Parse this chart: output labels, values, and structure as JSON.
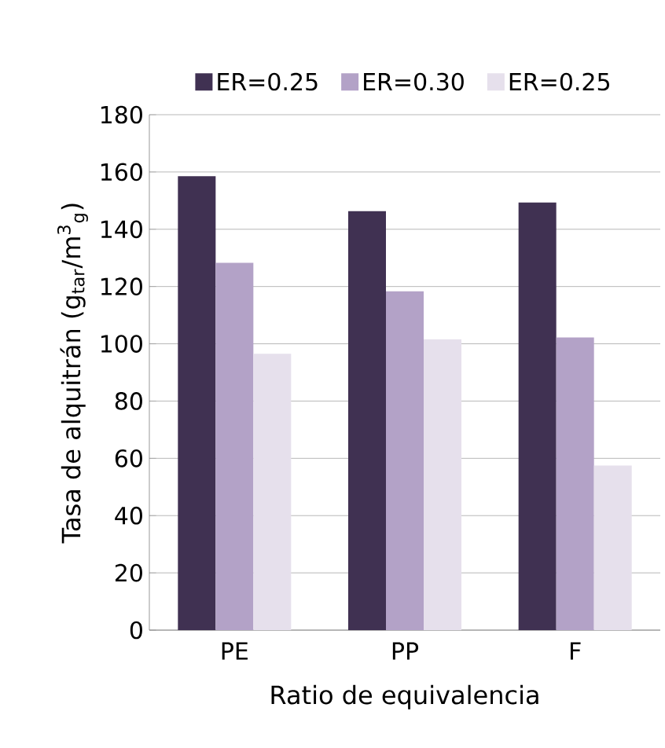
{
  "chart_data": {
    "type": "bar",
    "xlabel": "Ratio de equivalencia",
    "ylabel": "Tasa de alquitrán (g$_{tar}$/m$^{3}$$_{g}$)",
    "categories": [
      "PE",
      "PP",
      "F"
    ],
    "series": [
      {
        "name": "ER=0.25",
        "color": "#403152",
        "values": [
          158.5,
          146.3,
          149.3
        ]
      },
      {
        "name": "ER=0.30",
        "color": "#b3a2c7",
        "values": [
          128.3,
          118.3,
          102.2
        ]
      },
      {
        "name": "ER=0.25",
        "color": "#e6e0ec",
        "values": [
          96.5,
          101.6,
          57.5
        ]
      }
    ],
    "ylim": [
      0,
      180
    ],
    "yticks": [
      0,
      20,
      40,
      60,
      80,
      100,
      120,
      140,
      160,
      180
    ],
    "grid": "y",
    "legend": "top"
  }
}
